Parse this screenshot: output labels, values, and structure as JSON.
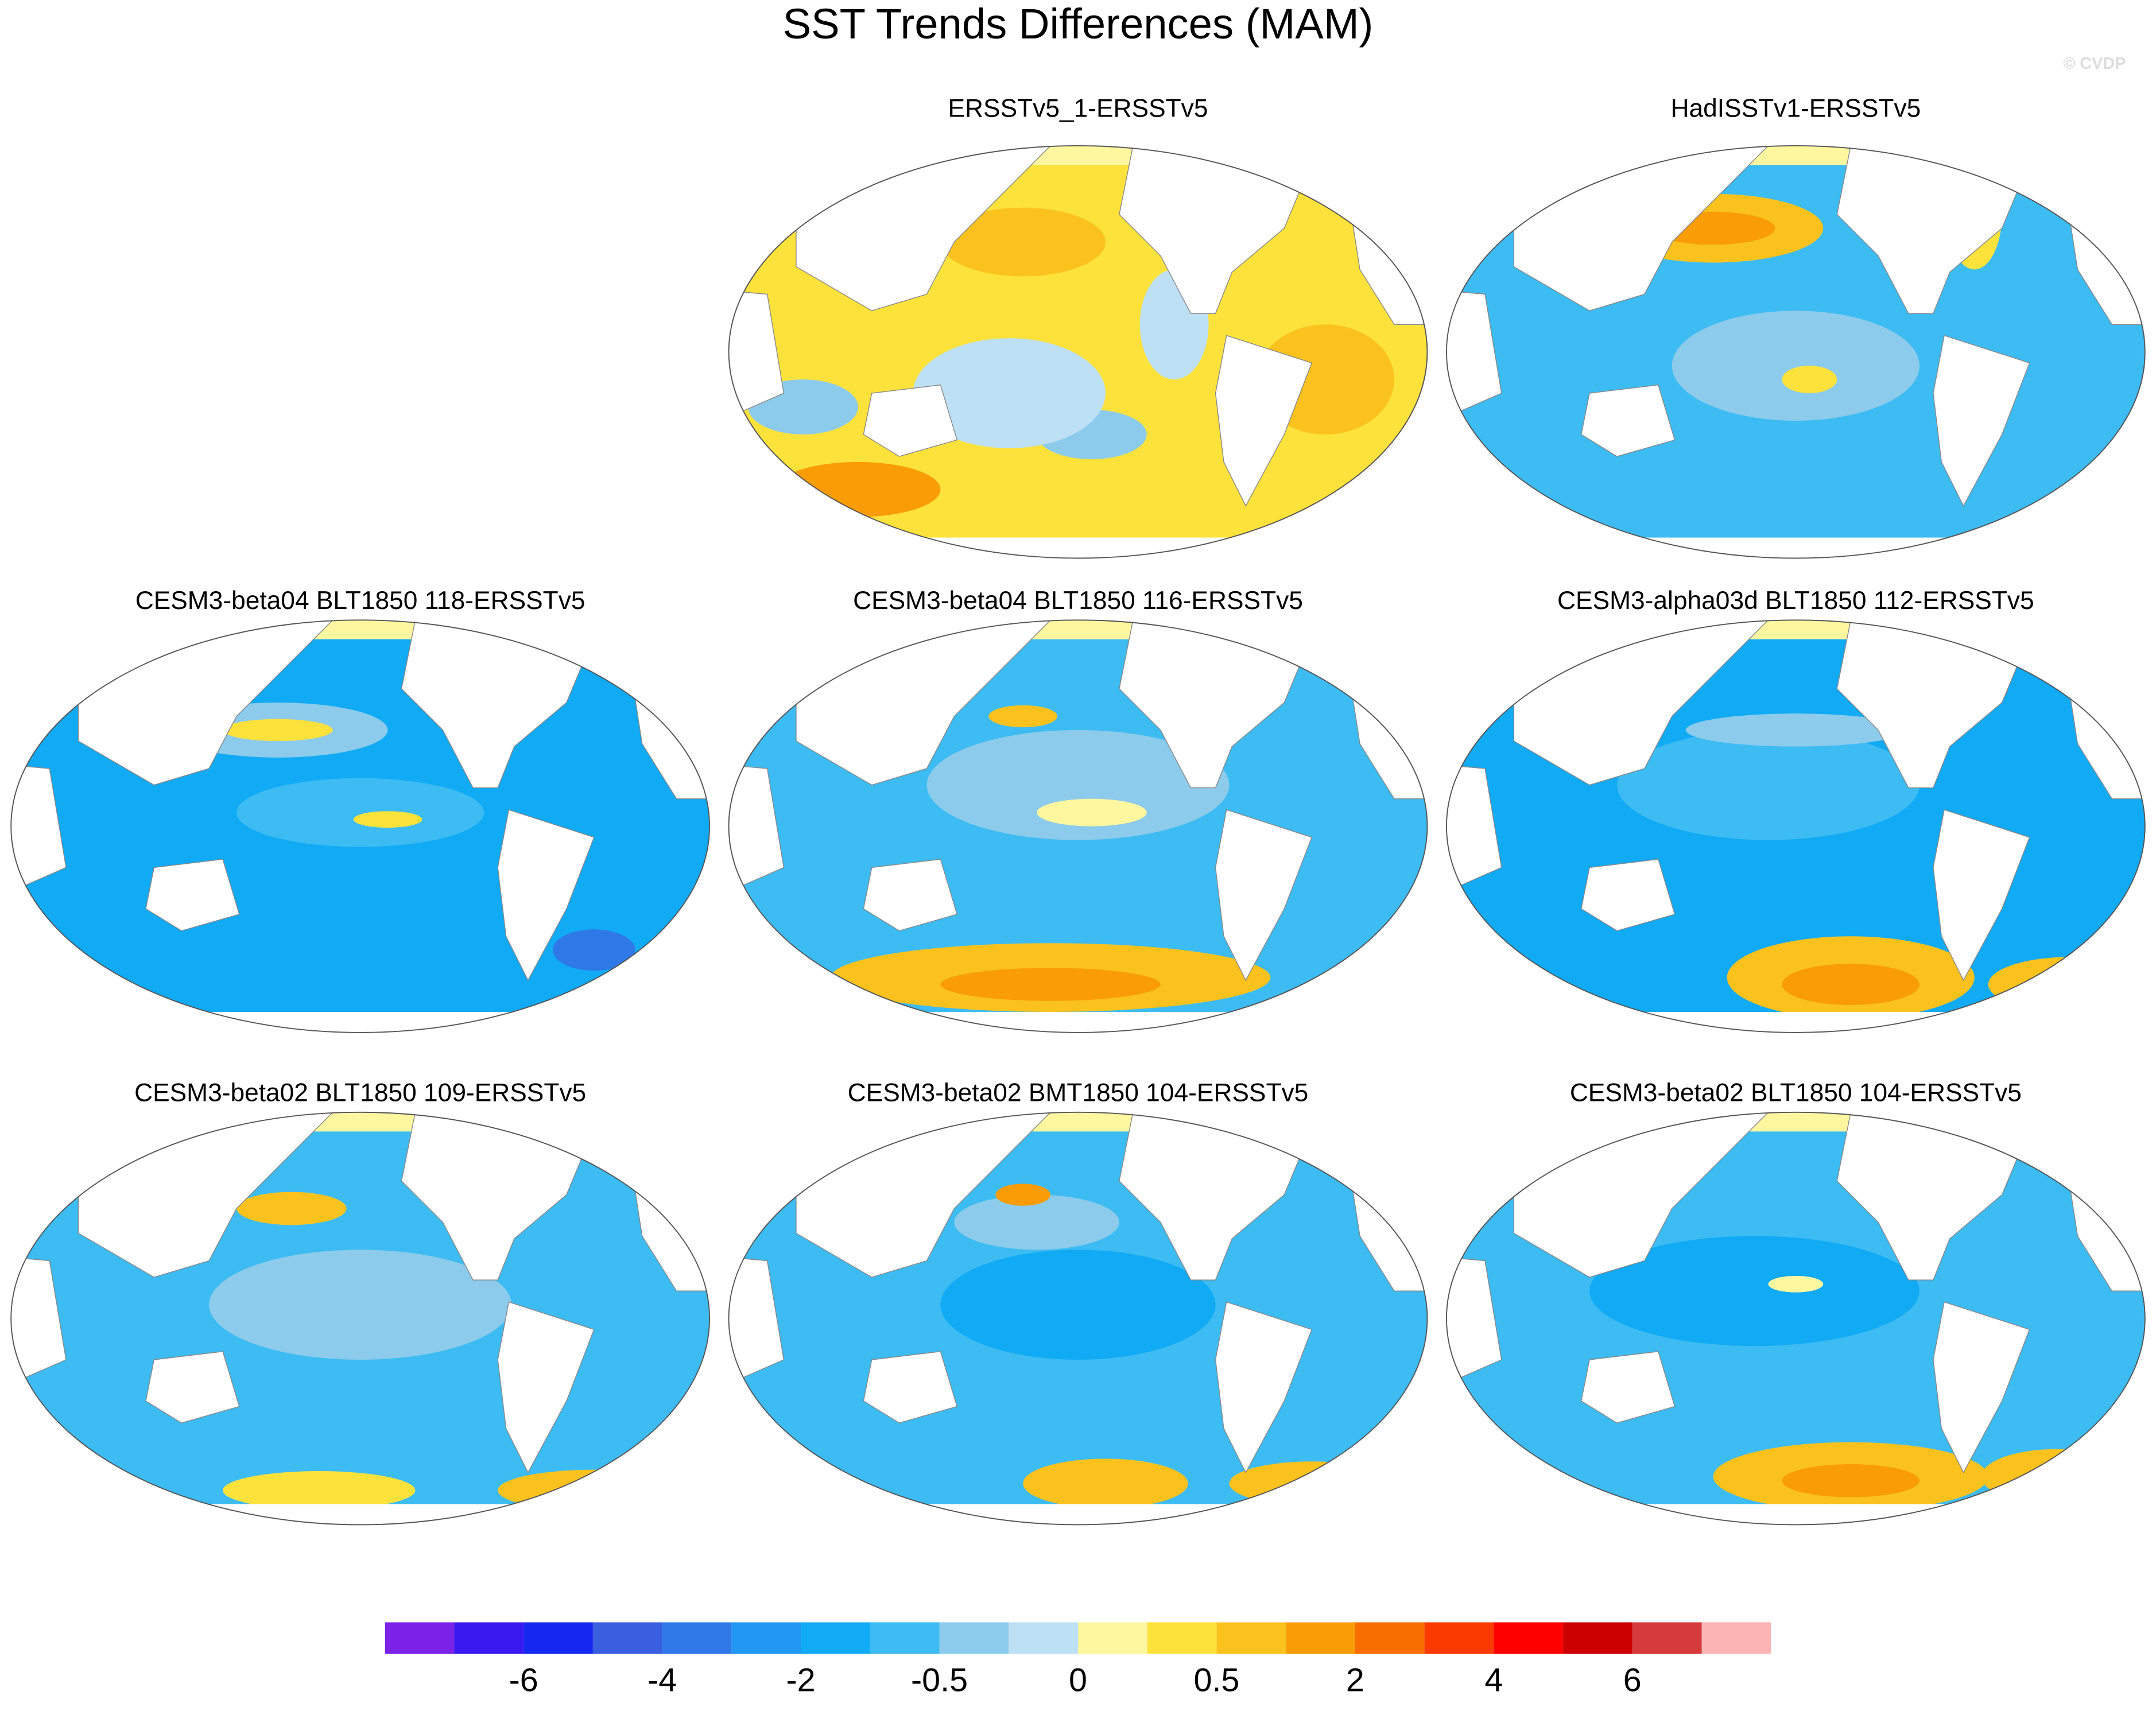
{
  "title": "SST Trends Differences (MAM)",
  "watermark": "© CVDP",
  "panels": [
    {
      "title": "ERSSTv5_1-ERSSTv5"
    },
    {
      "title": "HadISSTv1-ERSSTv5"
    },
    {
      "title": "CESM3-beta04 BLT1850 118-ERSSTv5"
    },
    {
      "title": "CESM3-beta04 BLT1850 116-ERSSTv5"
    },
    {
      "title": "CESM3-alpha03d BLT1850 112-ERSSTv5"
    },
    {
      "title": "CESM3-beta02 BLT1850 109-ERSSTv5"
    },
    {
      "title": "CESM3-beta02 BMT1850 104-ERSSTv5"
    },
    {
      "title": "CESM3-beta02 BLT1850 104-ERSSTv5"
    }
  ],
  "colorbar": {
    "colors": [
      "#7b22e8",
      "#3a18f0",
      "#1628f0",
      "#3a5ee0",
      "#2f78e8",
      "#2196f3",
      "#10aaf5",
      "#3cbcf2",
      "#8ccbeb",
      "#bde0f5",
      "#fff6a0",
      "#fde23c",
      "#fbc21d",
      "#f99c06",
      "#f86e00",
      "#fa3a00",
      "#ff0000",
      "#cc0000",
      "#d63a3a",
      "#fcb4b4"
    ],
    "labels": [
      -6,
      -4,
      -2,
      -0.5,
      0,
      0.5,
      2,
      4,
      6
    ]
  }
}
